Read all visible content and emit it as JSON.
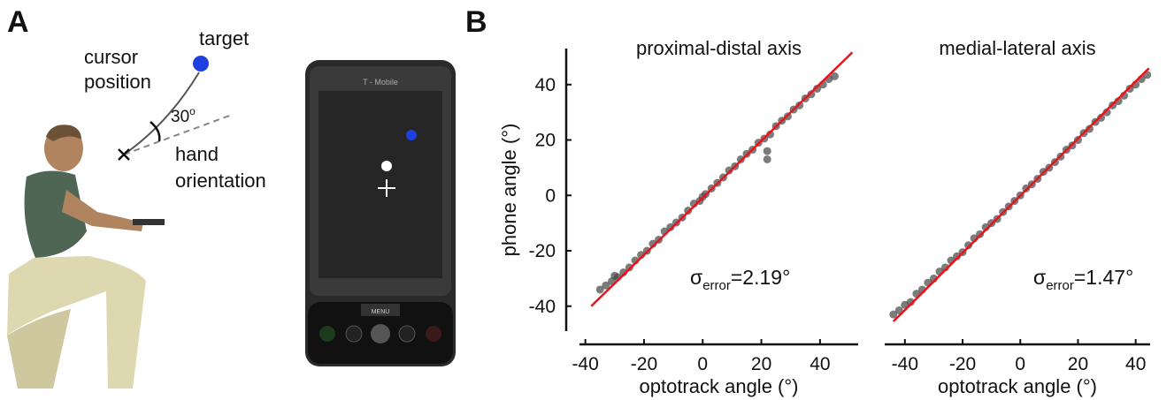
{
  "panel_labels": {
    "a": "A",
    "b": "B"
  },
  "panel_a": {
    "target": "target",
    "cursor_1": "cursor",
    "cursor_2": "position",
    "angle": "30",
    "angle_unit": "o",
    "hand_1": "hand",
    "hand_2": "orientation",
    "phone_brand": "T - Mobile",
    "phone_menu": "MENU"
  },
  "chart_data": [
    {
      "type": "scatter",
      "title": "proximal-distal axis",
      "x_label": "optotrack angle (°)",
      "y_label": "phone angle (°)",
      "xlim": [
        -42,
        53
      ],
      "ylim": [
        -49,
        53
      ],
      "xticks": [
        -40,
        -20,
        0,
        20,
        40
      ],
      "yticks": [
        -40,
        -20,
        0,
        20,
        40
      ],
      "color": "#444444",
      "x": [
        -35,
        -33,
        -31,
        -30,
        -29,
        -27,
        -25,
        -23,
        -21,
        -19,
        -17,
        -15,
        -13,
        -11,
        -9,
        -7,
        -5,
        -3,
        -1,
        0,
        1,
        3,
        5,
        7,
        9,
        11,
        13,
        15,
        17,
        19,
        21,
        22,
        22,
        23,
        25,
        27,
        29,
        31,
        33,
        35,
        37,
        39,
        41,
        43,
        45
      ],
      "values": [
        -34,
        -32.5,
        -31,
        -29,
        -29.5,
        -27.8,
        -26,
        -23.5,
        -21.5,
        -20,
        -17.5,
        -16,
        -13,
        -11.5,
        -9.8,
        -8,
        -5.5,
        -3,
        -2,
        -0.5,
        0.5,
        2.5,
        4.5,
        6.5,
        9,
        10.5,
        13,
        15,
        16.5,
        19,
        20.5,
        13,
        16,
        22,
        25,
        27,
        28.5,
        31,
        32.5,
        35,
        36.5,
        38.5,
        40,
        42,
        43
      ],
      "fit": {
        "color": "#e8141c",
        "x": [
          -38,
          51
        ],
        "values": [
          -40,
          51.6
        ]
      },
      "annotation": {
        "symbol": "σ",
        "subscript": "error",
        "text": "=2.19°"
      }
    },
    {
      "type": "scatter",
      "title": "medial-lateral axis",
      "x_label": "optotrack angle (°)",
      "xlim": [
        -47,
        45
      ],
      "ylim": [
        -49,
        53
      ],
      "xticks": [
        -40,
        -20,
        0,
        20,
        40
      ],
      "color": "#444444",
      "x": [
        -44,
        -42,
        -40,
        -38,
        -36,
        -34,
        -32,
        -30,
        -28,
        -26,
        -24,
        -22,
        -20,
        -18,
        -16,
        -14,
        -12,
        -10,
        -8,
        -6,
        -4,
        -2,
        0,
        2,
        4,
        6,
        8,
        10,
        12,
        14,
        16,
        18,
        20,
        22,
        24,
        26,
        28,
        30,
        32,
        34,
        36,
        38,
        40,
        42,
        44
      ],
      "values": [
        -43,
        -41.5,
        -39.5,
        -38.5,
        -35.5,
        -34,
        -31.5,
        -30,
        -27.5,
        -26,
        -23.5,
        -22,
        -20.5,
        -18,
        -15.5,
        -14,
        -11.5,
        -10,
        -8.5,
        -6,
        -4,
        -2,
        0,
        2.5,
        4,
        6,
        8.5,
        10,
        12,
        14,
        16.5,
        18,
        20,
        22.5,
        24,
        26.5,
        28,
        30,
        32.5,
        34,
        36,
        38.5,
        40,
        42,
        43.5
      ],
      "fit": {
        "color": "#e8141c",
        "x": [
          -44,
          44.6
        ],
        "values": [
          -45.5,
          45.9
        ]
      },
      "annotation": {
        "symbol": "σ",
        "subscript": "error",
        "text": "=1.47°"
      }
    }
  ]
}
